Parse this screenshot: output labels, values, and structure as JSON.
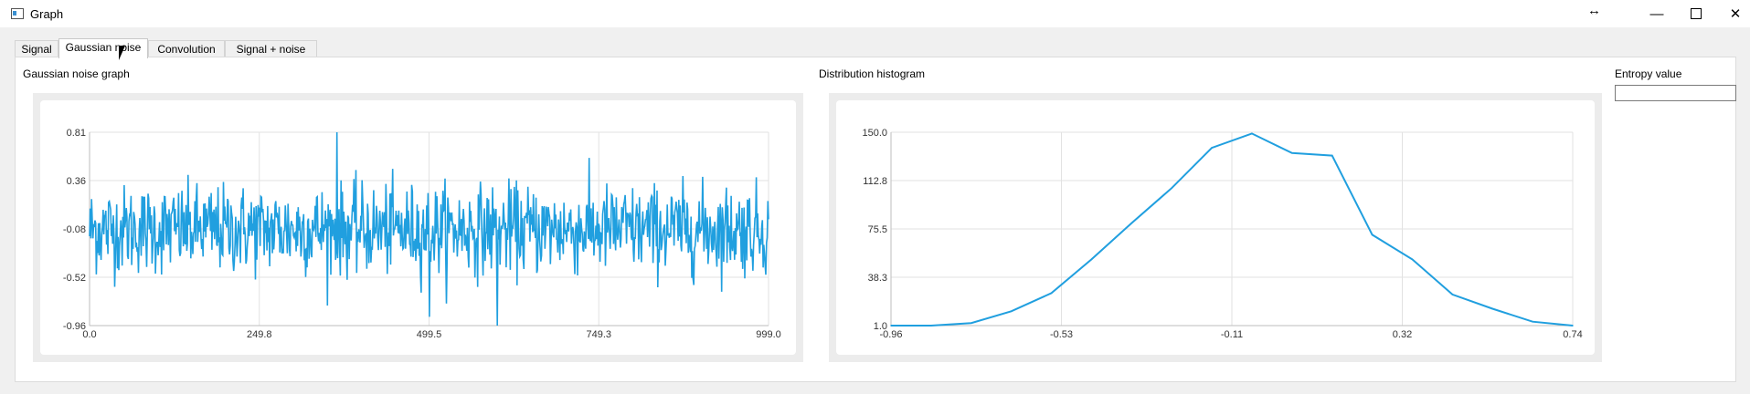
{
  "window": {
    "title": "Graph",
    "resize_glyph": "↔",
    "minimize_glyph": "—",
    "close_glyph": "✕"
  },
  "tabs": [
    {
      "label": "Signal",
      "active": false
    },
    {
      "label": "Gaussian noise",
      "active": true
    },
    {
      "label": "Convolution",
      "active": false
    },
    {
      "label": "Signal + noise",
      "active": false
    }
  ],
  "noise_section": {
    "label": "Gaussian noise graph"
  },
  "histogram_section": {
    "label": "Distribution histogram"
  },
  "entropy": {
    "label": "Entropy value",
    "value": ""
  },
  "colors": {
    "series": "#209fdf",
    "grid": "#e2e2e2",
    "frame": "#ececec"
  },
  "chart_data": [
    {
      "type": "line",
      "x_ticks": [
        "0.0",
        "249.8",
        "499.5",
        "749.3",
        "999.0"
      ],
      "y_ticks": [
        "0.81",
        "0.36",
        "-0.08",
        "-0.52",
        "-0.96"
      ],
      "xlim": [
        0,
        999
      ],
      "ylim": [
        -0.96,
        0.81
      ],
      "grid": true,
      "n_points": 1000,
      "description_values": "dense gaussian noise samples, mean about -0.08, std about 0.2"
    },
    {
      "type": "line",
      "x_ticks": [
        "-0.96",
        "-0.53",
        "-0.11",
        "0.32",
        "0.74"
      ],
      "y_ticks": [
        "150.0",
        "112.8",
        "75.5",
        "38.3",
        "1.0"
      ],
      "xlim": [
        -0.96,
        0.74
      ],
      "ylim": [
        1,
        150
      ],
      "grid": true,
      "x": [
        -0.96,
        -0.86,
        -0.76,
        -0.66,
        -0.56,
        -0.46,
        -0.36,
        -0.26,
        -0.16,
        -0.06,
        0.04,
        0.14,
        0.24,
        0.34,
        0.44,
        0.54,
        0.64,
        0.74
      ],
      "y": [
        1,
        1,
        3,
        12,
        26,
        52,
        80,
        107,
        138,
        149,
        134,
        132,
        71,
        52,
        25,
        14,
        4,
        1
      ]
    }
  ]
}
